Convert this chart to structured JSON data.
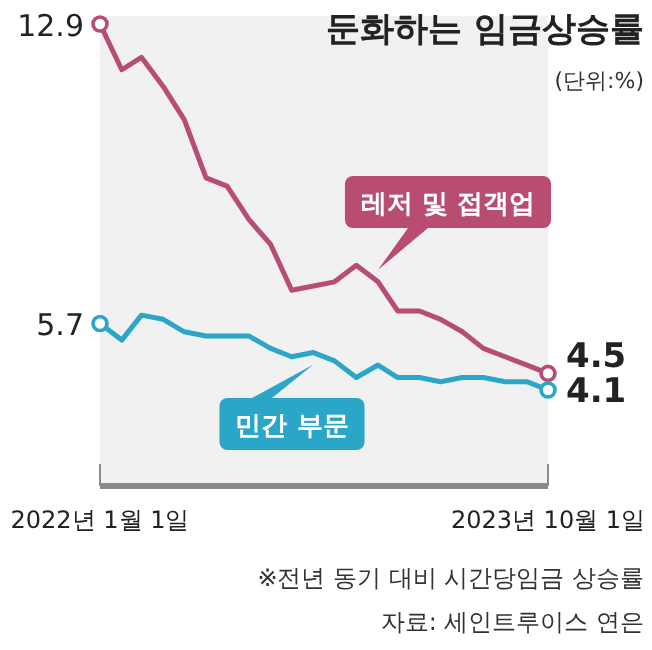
{
  "chart_data": {
    "type": "line",
    "title": "둔화하는 임금상승률",
    "x": [
      "2022-01-01",
      "2022-02-01",
      "2022-03-01",
      "2022-04-01",
      "2022-05-01",
      "2022-06-01",
      "2022-07-01",
      "2022-08-01",
      "2022-09-01",
      "2022-10-01",
      "2022-11-01",
      "2022-12-01",
      "2023-01-01",
      "2023-02-01",
      "2023-03-01",
      "2023-04-01",
      "2023-05-01",
      "2023-06-01",
      "2023-07-01",
      "2023-08-01",
      "2023-09-01",
      "2023-10-01"
    ],
    "xlim": [
      "2022-01-01",
      "2023-10-01"
    ],
    "xticks": [
      {
        "value": "2022-01-01",
        "label": "2022년 1월 1일"
      },
      {
        "value": "2023-10-01",
        "label": "2023년 10월 1일"
      }
    ],
    "series": [
      {
        "name": "레저 및 접객업",
        "color": "#b84c72",
        "values": [
          12.9,
          11.8,
          12.1,
          11.4,
          10.6,
          9.2,
          9.0,
          8.2,
          7.6,
          6.5,
          6.6,
          6.7,
          7.1,
          6.7,
          6.0,
          6.0,
          5.8,
          5.5,
          5.1,
          4.9,
          4.7,
          4.5
        ],
        "value_labels": [
          "12.9",
          null,
          null,
          null,
          null,
          null,
          null,
          null,
          null,
          null,
          null,
          null,
          null,
          null,
          null,
          null,
          null,
          null,
          null,
          null,
          null,
          "4.5"
        ]
      },
      {
        "name": "민간 부문",
        "color": "#2aa6c8",
        "values": [
          5.7,
          5.3,
          5.9,
          5.8,
          5.5,
          5.4,
          5.4,
          5.4,
          5.1,
          4.9,
          5.0,
          4.8,
          4.4,
          4.7,
          4.4,
          4.4,
          4.3,
          4.4,
          4.4,
          4.3,
          4.3,
          4.1
        ],
        "value_labels": [
          "5.7",
          null,
          null,
          null,
          null,
          null,
          null,
          null,
          null,
          null,
          null,
          null,
          null,
          null,
          null,
          null,
          null,
          null,
          null,
          null,
          null,
          "4.1"
        ]
      }
    ],
    "annotations": [
      "(단위:%)",
      "※전년 동기 대비 시간당임금 상승률",
      "자료: 세인트루이스 연은"
    ],
    "grid": false,
    "legend": "center"
  }
}
